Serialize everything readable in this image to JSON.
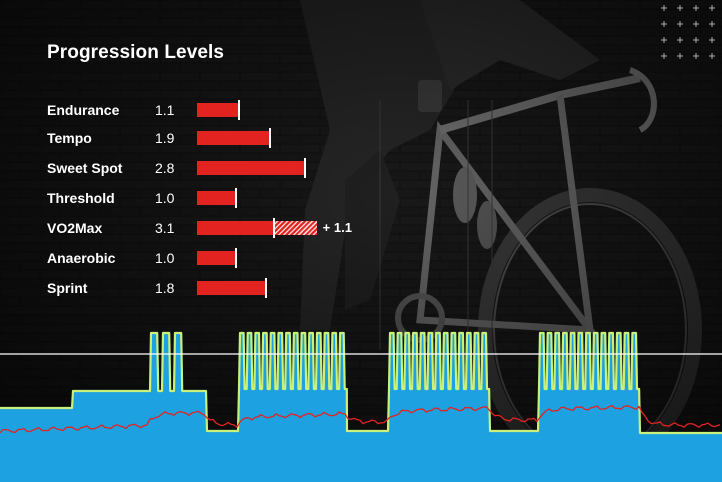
{
  "title": "Progression Levels",
  "levels": [
    {
      "name": "Endurance",
      "value": "1.1",
      "level": 1.1
    },
    {
      "name": "Tempo",
      "value": "1.9",
      "level": 1.9
    },
    {
      "name": "Sweet Spot",
      "value": "2.8",
      "level": 2.8
    },
    {
      "name": "Threshold",
      "value": "1.0",
      "level": 1.0
    },
    {
      "name": "VO2Max",
      "value": "3.1",
      "level": 3.1,
      "gain_label": "+ 1.1",
      "gain": 1.1
    },
    {
      "name": "Anaerobic",
      "value": "1.0",
      "level": 1.0
    },
    {
      "name": "Sprint",
      "value": "1.8",
      "level": 1.8
    }
  ],
  "colors": {
    "bar": "#e3231f",
    "bar_gain_hatch": "#f7d1cf",
    "graph_fill": "#1da1e0",
    "power_line": "#c8f07a",
    "heart_rate_line": "#e3231f",
    "ftp_line": "#ffffff"
  }
}
